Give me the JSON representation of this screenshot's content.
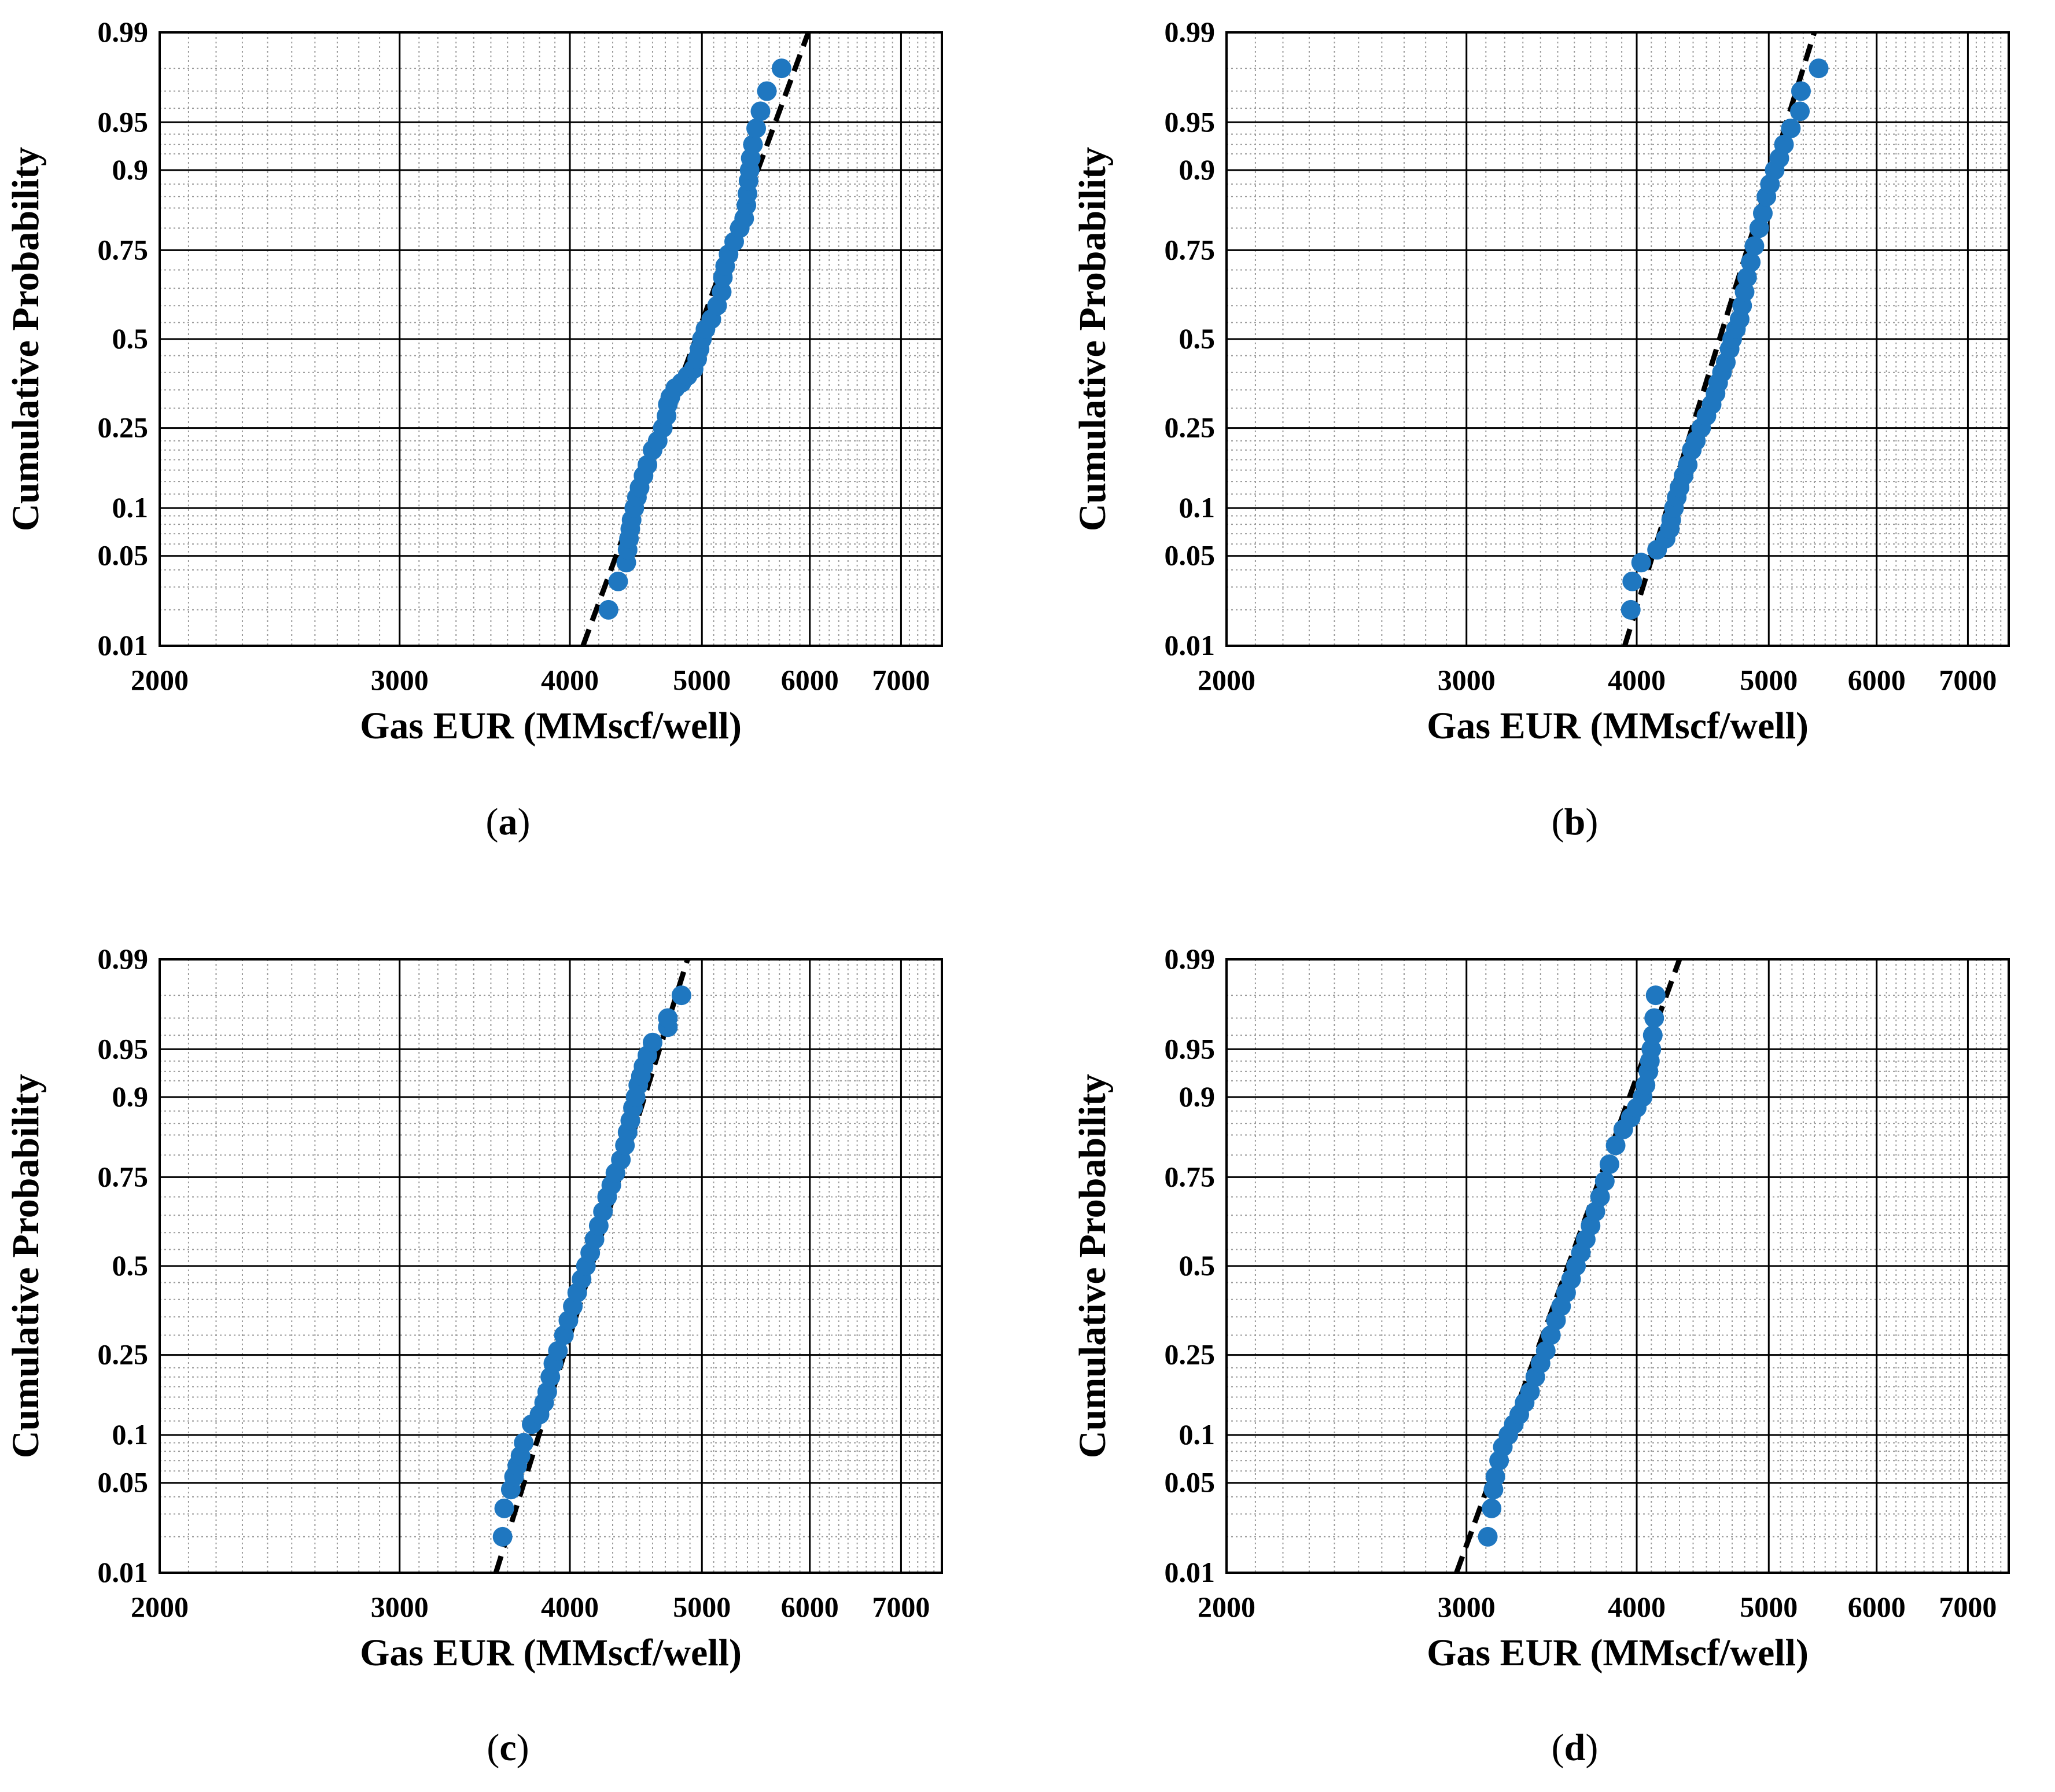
{
  "chart_data": [
    {
      "type": "scatter",
      "label": "a",
      "xlabel": "Gas EUR (MMscf/well)",
      "ylabel": "Cumulative Probability",
      "x_scale": "log",
      "y_scale": "normal-probability",
      "xlim": [
        2000,
        7500
      ],
      "ylim": [
        0.01,
        0.99
      ],
      "x_ticks": [
        2000,
        3000,
        4000,
        5000,
        6000,
        7000
      ],
      "y_ticks": [
        0.01,
        0.05,
        0.1,
        0.25,
        0.5,
        0.75,
        0.9,
        0.95,
        0.99
      ],
      "grid": true,
      "marker_color": "#1f77c0",
      "fit_line": {
        "color": "#000000",
        "style": "dashed",
        "points": [
          [
            4090,
            0.01
          ],
          [
            5985,
            0.99
          ]
        ]
      },
      "series": [
        {
          "x": [
            4270,
            4340,
            4400,
            4410,
            4420,
            4430,
            4440,
            4460,
            4480,
            4500,
            4530,
            4560,
            4600,
            4640,
            4680,
            4710,
            4720,
            4740,
            4780,
            4830,
            4880,
            4930,
            4960,
            4980,
            5000,
            5030,
            5080,
            5130,
            5170,
            5180,
            5200,
            5230,
            5280,
            5330,
            5370,
            5390,
            5400,
            5410,
            5420,
            5430,
            5450,
            5480,
            5520,
            5580,
            5720
          ],
          "y": [
            0.02,
            0.033,
            0.045,
            0.055,
            0.065,
            0.075,
            0.085,
            0.1,
            0.115,
            0.13,
            0.15,
            0.17,
            0.2,
            0.22,
            0.25,
            0.28,
            0.31,
            0.33,
            0.355,
            0.37,
            0.39,
            0.41,
            0.44,
            0.47,
            0.5,
            0.53,
            0.56,
            0.6,
            0.64,
            0.68,
            0.71,
            0.74,
            0.77,
            0.8,
            0.82,
            0.845,
            0.865,
            0.885,
            0.9,
            0.915,
            0.93,
            0.945,
            0.958,
            0.97,
            0.98
          ]
        }
      ]
    },
    {
      "type": "scatter",
      "label": "b",
      "xlabel": "Gas EUR (MMscf/well)",
      "ylabel": "Cumulative Probability",
      "x_scale": "log",
      "y_scale": "normal-probability",
      "xlim": [
        2000,
        7500
      ],
      "ylim": [
        0.01,
        0.99
      ],
      "x_ticks": [
        2000,
        3000,
        4000,
        5000,
        6000,
        7000
      ],
      "y_ticks": [
        0.01,
        0.05,
        0.1,
        0.25,
        0.5,
        0.75,
        0.9,
        0.95,
        0.99
      ],
      "grid": true,
      "marker_color": "#1f77c0",
      "fit_line": {
        "color": "#000000",
        "style": "dashed",
        "points": [
          [
            3920,
            0.01
          ],
          [
            5400,
            0.99
          ]
        ]
      },
      "series": [
        {
          "x": [
            3960,
            3970,
            4030,
            4140,
            4200,
            4230,
            4240,
            4260,
            4280,
            4300,
            4330,
            4360,
            4390,
            4420,
            4460,
            4500,
            4540,
            4570,
            4590,
            4620,
            4650,
            4680,
            4700,
            4730,
            4760,
            4780,
            4800,
            4820,
            4850,
            4880,
            4920,
            4950,
            4980,
            5010,
            5050,
            5090,
            5130,
            5190,
            5270,
            5280,
            5440
          ],
          "y": [
            0.02,
            0.033,
            0.045,
            0.055,
            0.065,
            0.075,
            0.085,
            0.1,
            0.115,
            0.13,
            0.15,
            0.17,
            0.2,
            0.22,
            0.25,
            0.28,
            0.31,
            0.34,
            0.37,
            0.4,
            0.43,
            0.47,
            0.5,
            0.53,
            0.56,
            0.6,
            0.64,
            0.68,
            0.72,
            0.76,
            0.8,
            0.83,
            0.86,
            0.88,
            0.9,
            0.915,
            0.93,
            0.945,
            0.958,
            0.97,
            0.98
          ]
        }
      ]
    },
    {
      "type": "scatter",
      "label": "c",
      "xlabel": "Gas EUR (MMscf/well)",
      "ylabel": "Cumulative Probability",
      "x_scale": "log",
      "y_scale": "normal-probability",
      "xlim": [
        2000,
        7500
      ],
      "ylim": [
        0.01,
        0.99
      ],
      "x_ticks": [
        2000,
        3000,
        4000,
        5000,
        6000,
        7000
      ],
      "y_ticks": [
        0.01,
        0.05,
        0.1,
        0.25,
        0.5,
        0.75,
        0.9,
        0.95,
        0.99
      ],
      "grid": true,
      "marker_color": "#1f77c0",
      "fit_line": {
        "color": "#000000",
        "style": "dashed",
        "points": [
          [
            3530,
            0.01
          ],
          [
            4880,
            0.99
          ]
        ]
      },
      "series": [
        {
          "x": [
            3570,
            3580,
            3620,
            3640,
            3660,
            3680,
            3700,
            3750,
            3800,
            3830,
            3850,
            3870,
            3890,
            3920,
            3960,
            3990,
            4020,
            4050,
            4080,
            4110,
            4140,
            4170,
            4200,
            4230,
            4260,
            4290,
            4320,
            4360,
            4390,
            4410,
            4430,
            4450,
            4470,
            4490,
            4510,
            4530,
            4560,
            4600,
            4720,
            4720,
            4830
          ],
          "y": [
            0.02,
            0.033,
            0.045,
            0.055,
            0.065,
            0.075,
            0.09,
            0.115,
            0.13,
            0.15,
            0.17,
            0.2,
            0.23,
            0.26,
            0.3,
            0.34,
            0.38,
            0.42,
            0.46,
            0.5,
            0.54,
            0.58,
            0.62,
            0.66,
            0.7,
            0.73,
            0.76,
            0.79,
            0.82,
            0.845,
            0.865,
            0.885,
            0.9,
            0.915,
            0.925,
            0.935,
            0.945,
            0.955,
            0.965,
            0.97,
            0.98
          ]
        }
      ]
    },
    {
      "type": "scatter",
      "label": "d",
      "xlabel": "Gas EUR (MMscf/well)",
      "ylabel": "Cumulative Probability",
      "x_scale": "log",
      "y_scale": "normal-probability",
      "xlim": [
        2000,
        7500
      ],
      "ylim": [
        0.01,
        0.99
      ],
      "x_ticks": [
        2000,
        3000,
        4000,
        5000,
        6000,
        7000
      ],
      "y_ticks": [
        0.01,
        0.05,
        0.1,
        0.25,
        0.5,
        0.75,
        0.9,
        0.95,
        0.99
      ],
      "grid": true,
      "marker_color": "#1f77c0",
      "fit_line": {
        "color": "#000000",
        "style": "dashed",
        "points": [
          [
            2950,
            0.01
          ],
          [
            4300,
            0.99
          ]
        ]
      },
      "series": [
        {
          "x": [
            3110,
            3130,
            3140,
            3150,
            3170,
            3190,
            3220,
            3250,
            3280,
            3310,
            3340,
            3370,
            3400,
            3430,
            3460,
            3490,
            3520,
            3550,
            3580,
            3610,
            3640,
            3670,
            3700,
            3730,
            3760,
            3790,
            3820,
            3860,
            3910,
            3960,
            4000,
            4040,
            4060,
            4080,
            4090,
            4100,
            4110,
            4120,
            4130
          ],
          "y": [
            0.02,
            0.033,
            0.045,
            0.055,
            0.07,
            0.085,
            0.1,
            0.115,
            0.13,
            0.15,
            0.17,
            0.2,
            0.23,
            0.26,
            0.3,
            0.34,
            0.38,
            0.42,
            0.46,
            0.5,
            0.54,
            0.58,
            0.62,
            0.66,
            0.7,
            0.74,
            0.78,
            0.82,
            0.85,
            0.87,
            0.885,
            0.9,
            0.915,
            0.93,
            0.94,
            0.95,
            0.96,
            0.97,
            0.98
          ]
        }
      ]
    }
  ]
}
